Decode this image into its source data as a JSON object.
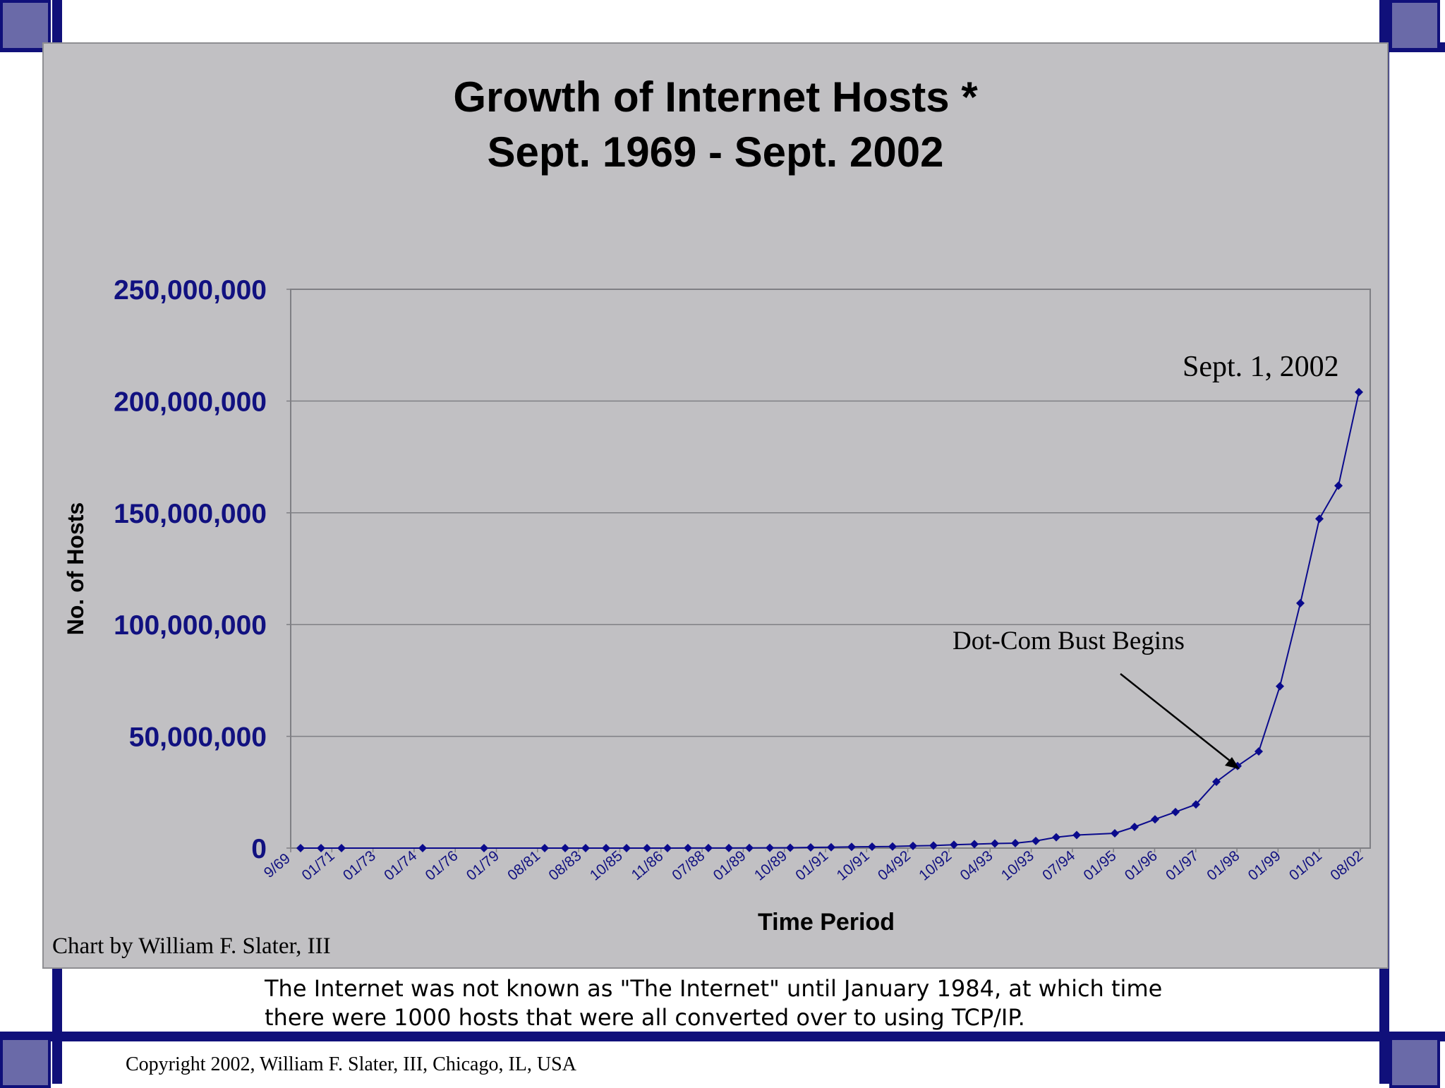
{
  "colors": {
    "frame": "#10107a",
    "corner": "#6a6aa8",
    "plot_bg": "#c1c0c3",
    "series": "#0a0a8c",
    "axis_tick_text": "#111180"
  },
  "credit": "Chart by William F. Slater, III",
  "footnote": {
    "line1": "The Internet was not known as \"The Internet\" until January 1984, at which time",
    "line2": "there were 1000 hosts that were all converted over to using TCP/IP."
  },
  "copyright": "Copyright 2002, William F. Slater, III, Chicago, IL, USA",
  "chart_data": {
    "type": "line",
    "title": "Growth of Internet Hosts *",
    "subtitle": "Sept. 1969 - Sept. 2002",
    "xlabel": "Time Period",
    "ylabel": "No. of Hosts",
    "ylim": [
      0,
      250000000
    ],
    "yticks": [
      "250,000,000",
      "200,000,000",
      "150,000,000",
      "100,000,000",
      "50,000,000",
      "0"
    ],
    "ytick_values": [
      250000000,
      200000000,
      150000000,
      100000000,
      50000000,
      0
    ],
    "xtick_labels": [
      "9/69",
      "01/71",
      "01/73",
      "01/74",
      "01/76",
      "01/79",
      "08/81",
      "08/83",
      "10/85",
      "11/86",
      "07/88",
      "01/89",
      "10/89",
      "01/91",
      "10/91",
      "04/92",
      "10/92",
      "04/93",
      "10/93",
      "07/94",
      "01/95",
      "01/96",
      "01/97",
      "01/98",
      "01/99",
      "01/01",
      "08/02"
    ],
    "grid": "horizontal",
    "legend": "none",
    "series": [
      {
        "values": [
          4,
          13,
          23,
          62,
          111,
          213,
          235,
          562,
          1024,
          1961,
          2308,
          5089,
          28174,
          33000,
          56000,
          80000,
          130000,
          159000,
          313000,
          376000,
          535000,
          617000,
          727000,
          992000,
          1136000,
          1486000,
          1776000,
          2056000,
          2217000,
          3212000,
          4852000,
          5846000,
          6642000,
          9472000,
          12881000,
          16146000,
          19540000,
          29670000,
          36739000,
          43230000,
          72398000,
          109574000,
          147344000,
          162128000,
          204000000
        ]
      }
    ],
    "annotations": [
      {
        "text": "Sept. 1, 2002"
      },
      {
        "text": "Dot-Com Bust Begins"
      }
    ]
  }
}
